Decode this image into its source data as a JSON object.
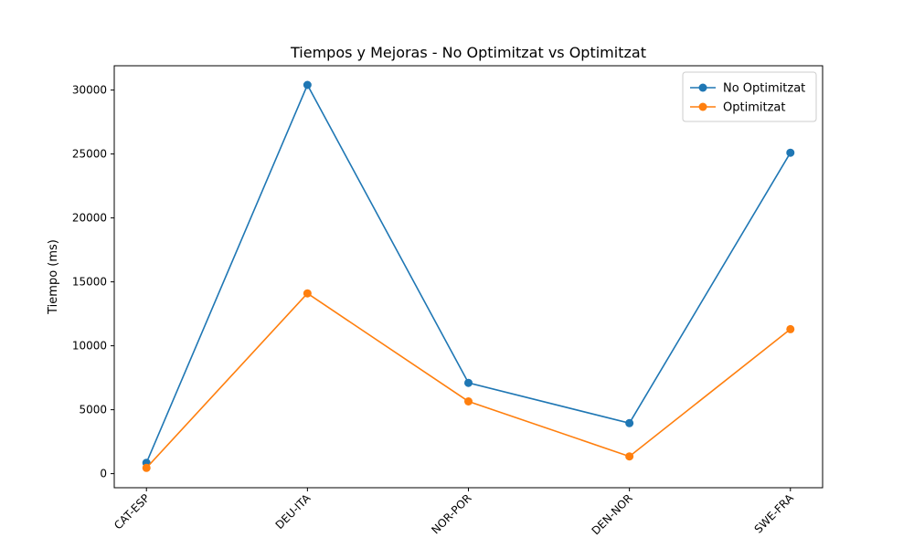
{
  "chart_data": {
    "type": "line",
    "title": "Tiempos y Mejoras - No Optimitzat vs Optimitzat",
    "xlabel": "",
    "ylabel": "Tiempo (ms)",
    "categories": [
      "CAT-ESP",
      "DEU-ITA",
      "NOR-POR",
      "DEN-NOR",
      "SWE-FRA"
    ],
    "yticks": [
      0,
      5000,
      10000,
      15000,
      20000,
      25000,
      30000
    ],
    "ylim": [
      -1100,
      31900
    ],
    "grid": false,
    "legend_position": "top-right",
    "series": [
      {
        "name": "No Optimitzat",
        "color": "#1f77b4",
        "values": [
          850,
          30400,
          7100,
          3950,
          25100
        ]
      },
      {
        "name": "Optimitzat",
        "color": "#ff7f0e",
        "values": [
          450,
          14100,
          5650,
          1350,
          11300
        ]
      }
    ]
  }
}
